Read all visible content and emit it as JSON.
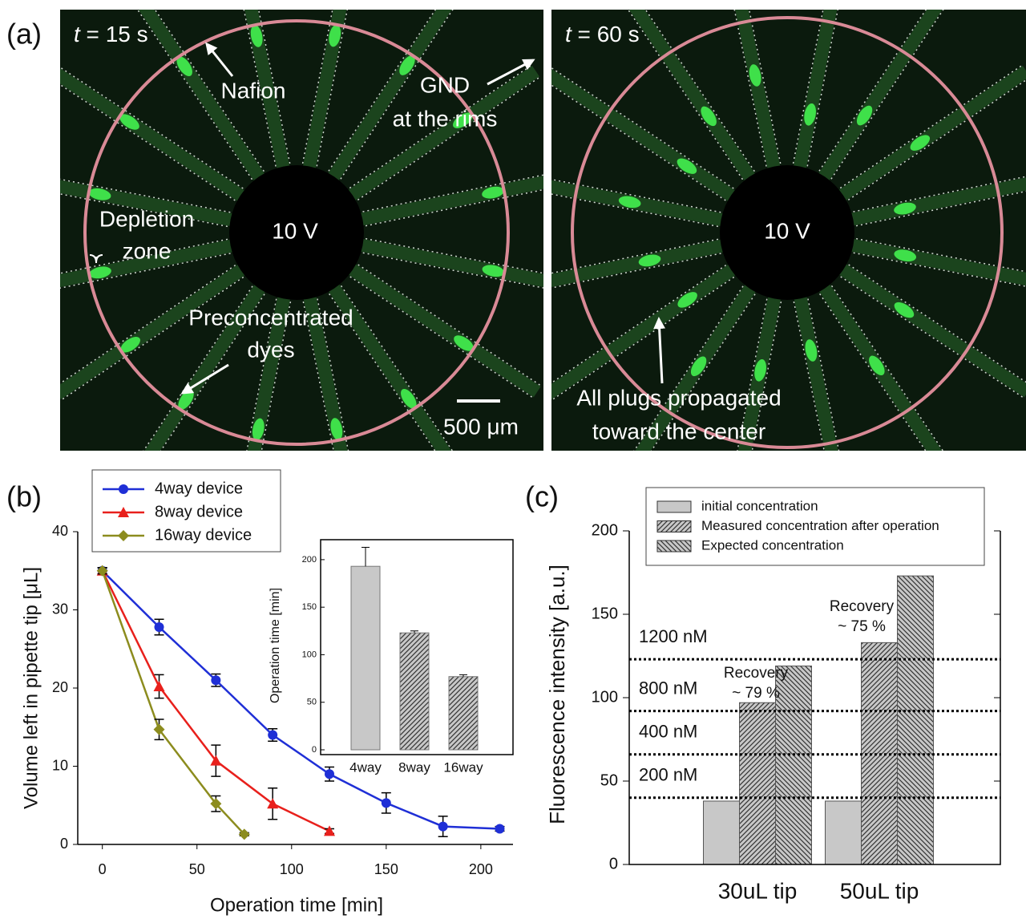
{
  "panel_a": {
    "label": "(a)",
    "left": {
      "time_var": "t",
      "time_value": " = 15 s",
      "center": "10 V",
      "nafion": "Nafion",
      "gnd": "GND",
      "gnd_line2": "at the rims",
      "depletion": "Depletion",
      "depletion_line2": "zone",
      "preconc": "Preconcentrated",
      "preconc_line2": "dyes",
      "scale": "500 μm"
    },
    "right": {
      "time_var": "t",
      "time_value": " = 60 s",
      "center": "10 V",
      "note": "All plugs propagated",
      "note_line2": "toward the center"
    }
  },
  "chart_data": [
    {
      "type": "line",
      "label": "(b)",
      "x_label": "Operation time [min]",
      "y_label": "Volume left in pipette tip [μL]",
      "xlim": [
        -13,
        217
      ],
      "ylim": [
        0,
        40
      ],
      "xticks": [
        0,
        50,
        100,
        150,
        200
      ],
      "yticks": [
        0,
        10,
        20,
        30,
        40
      ],
      "legend": "top-left",
      "series": [
        {
          "name": "4way device",
          "color": "#1f2fd6",
          "marker": "circle",
          "x": [
            0,
            30,
            60,
            90,
            120,
            150,
            180,
            210
          ],
          "values": [
            35,
            27.8,
            21,
            14,
            9,
            5.3,
            2.3,
            2
          ],
          "errors": [
            0.4,
            1,
            0.8,
            0.8,
            0.9,
            1.3,
            1.3,
            0.3
          ]
        },
        {
          "name": "8way device",
          "color": "#e8201c",
          "marker": "triangle",
          "x": [
            0,
            30,
            60,
            90,
            120
          ],
          "values": [
            35,
            20.2,
            10.7,
            5.2,
            1.7
          ],
          "errors": [
            0.4,
            1.5,
            2,
            2,
            0.3
          ]
        },
        {
          "name": "16way device",
          "color": "#8c8c1e",
          "marker": "diamond",
          "x": [
            0,
            30,
            60,
            75
          ],
          "values": [
            35,
            14.7,
            5.2,
            1.3
          ],
          "errors": [
            0.4,
            1.3,
            1,
            0.2
          ]
        }
      ]
    },
    {
      "type": "bar",
      "y_label": "Operation time [min]",
      "categories": [
        "4way",
        "8way",
        "16way"
      ],
      "values": [
        193,
        123,
        77
      ],
      "errors": [
        20,
        2,
        2
      ],
      "fills": [
        "solid",
        "diagonal",
        "diagonal"
      ],
      "color": "#c8c8c8",
      "ylim": [
        0,
        221
      ],
      "yticks": [
        0,
        50,
        100,
        150,
        200
      ]
    },
    {
      "type": "grouped-bar",
      "label": "(c)",
      "y_label": "Fluorescence intensity [a.u.]",
      "categories": [
        "30uL tip",
        "50uL tip"
      ],
      "ylim": [
        0,
        200
      ],
      "yticks": [
        0,
        50,
        100,
        150,
        200
      ],
      "legend": "top",
      "series": [
        {
          "name": "initial concentration",
          "color": "#c8c8c8",
          "fill": "solid",
          "values": [
            38,
            38
          ]
        },
        {
          "name": "Measured concentration after operation",
          "color": "#c8c8c8",
          "fill": "diagonal",
          "values": [
            97,
            133
          ]
        },
        {
          "name": "Expected concentration",
          "color": "#c8c8c8",
          "fill": "backdiagonal",
          "values": [
            119,
            173
          ]
        }
      ],
      "reference_lines": [
        {
          "value": 123,
          "label": "1200 nM"
        },
        {
          "value": 92,
          "label": "800 nM"
        },
        {
          "value": 66,
          "label": "400 nM"
        },
        {
          "value": 40,
          "label": "200 nM"
        }
      ],
      "annotations": [
        [
          "Recovery",
          "~ 79 %"
        ],
        [
          "Recovery",
          "~ 75 %"
        ]
      ]
    }
  ]
}
